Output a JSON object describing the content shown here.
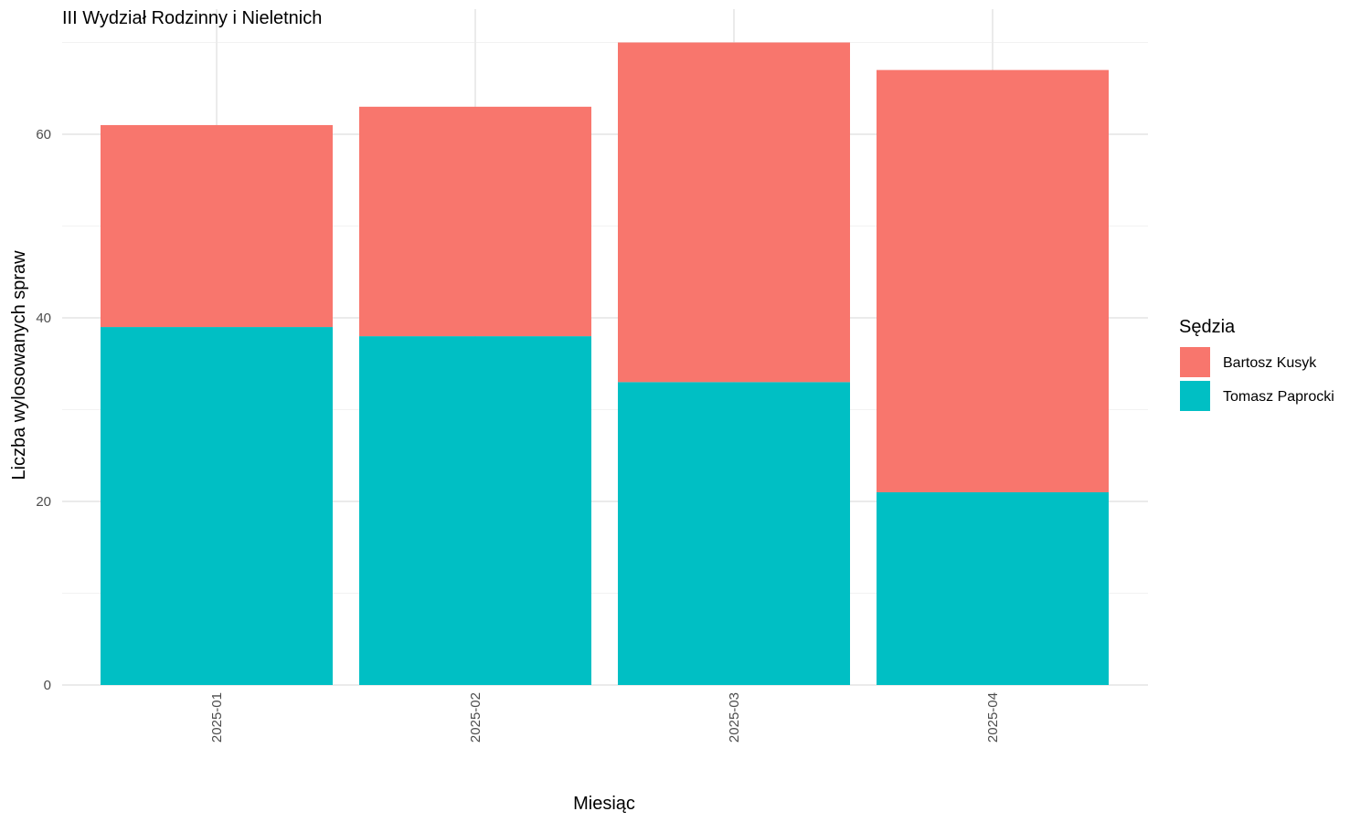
{
  "chart_data": {
    "type": "bar",
    "stacked": true,
    "title": "III Wydział Rodzinny i Nieletnich",
    "xlabel": "Miesiąc",
    "ylabel": "Liczba wylosowanych spraw",
    "categories": [
      "2025-01",
      "2025-02",
      "2025-03",
      "2025-04"
    ],
    "series": [
      {
        "name": "Tomasz Paprocki",
        "color": "#00BFC4",
        "values": [
          39,
          38,
          33,
          21
        ]
      },
      {
        "name": "Bartosz Kusyk",
        "color": "#F8766D",
        "values": [
          22,
          25,
          37,
          46
        ]
      }
    ],
    "yticks": [
      0,
      20,
      40,
      60
    ],
    "ylim": [
      0,
      70
    ],
    "grid": true,
    "legend": {
      "title": "Sędzia",
      "position": "right",
      "order": [
        "Bartosz Kusyk",
        "Tomasz Paprocki"
      ]
    },
    "x_tick_rotation": "vertical"
  }
}
